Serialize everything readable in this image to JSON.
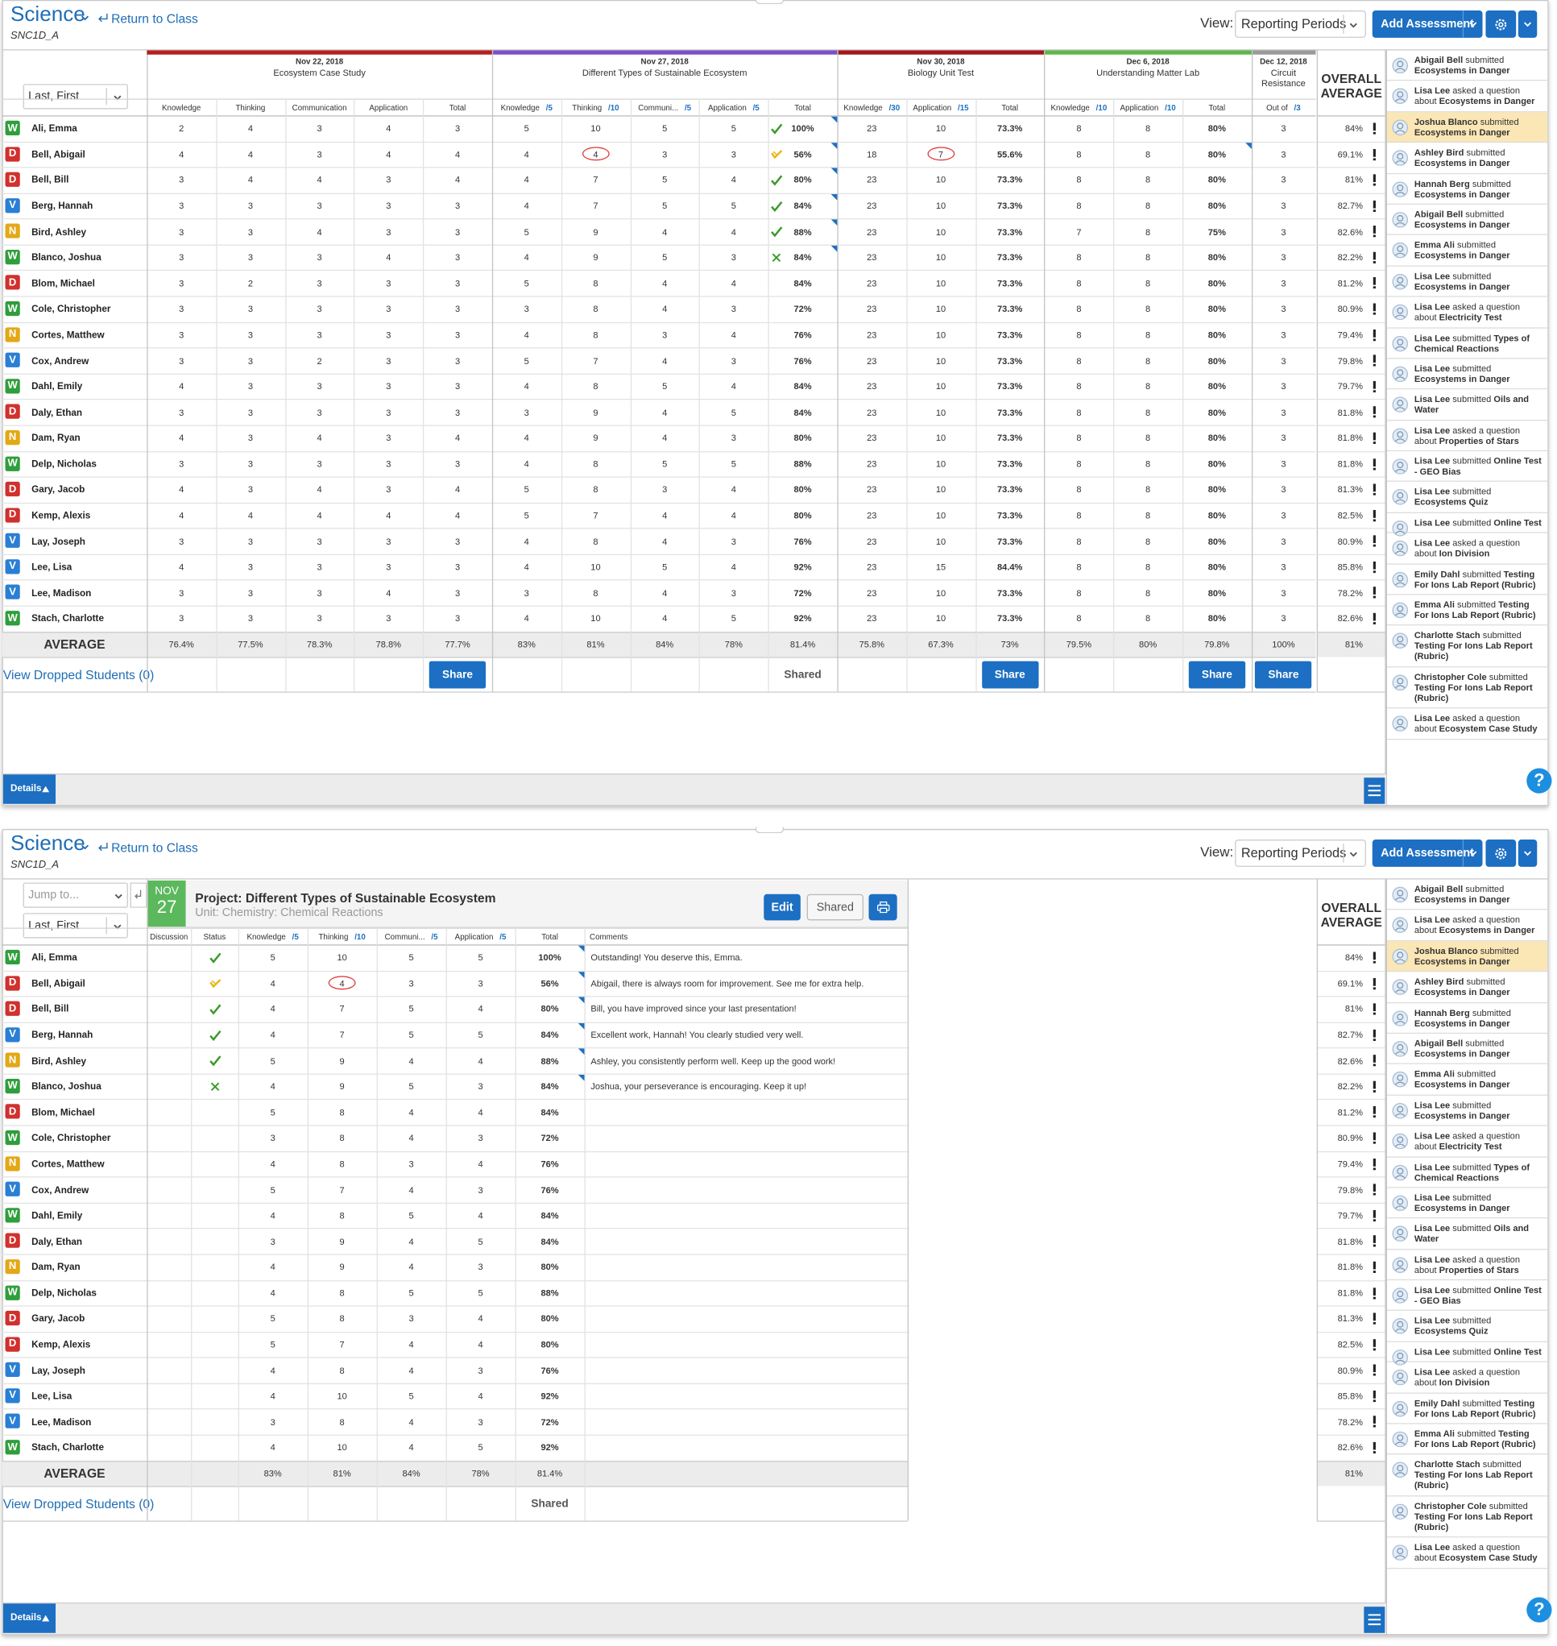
{
  "header": {
    "title": "Science",
    "return_link": "Return to Class",
    "class_code": "SNC1D_A",
    "view_label": "View:",
    "view_select": "Reporting Periods",
    "add_button": "Add Assessment"
  },
  "sort_select": "Last, First",
  "jump_select": "Jump to...",
  "status_colors": {
    "W": "#2f9e3c",
    "D": "#d0312d",
    "V": "#2a7fd4",
    "N": "#e3a817"
  },
  "students": [
    {
      "status": "W",
      "name": "Ali, Emma",
      "overall": "84%"
    },
    {
      "status": "D",
      "name": "Bell, Abigail",
      "overall": "69.1%"
    },
    {
      "status": "D",
      "name": "Bell, Bill",
      "overall": "81%"
    },
    {
      "status": "V",
      "name": "Berg, Hannah",
      "overall": "82.7%"
    },
    {
      "status": "N",
      "name": "Bird, Ashley",
      "overall": "82.6%"
    },
    {
      "status": "W",
      "name": "Blanco, Joshua",
      "overall": "82.2%"
    },
    {
      "status": "D",
      "name": "Blom, Michael",
      "overall": "81.2%"
    },
    {
      "status": "W",
      "name": "Cole, Christopher",
      "overall": "80.9%"
    },
    {
      "status": "N",
      "name": "Cortes, Matthew",
      "overall": "79.4%"
    },
    {
      "status": "V",
      "name": "Cox, Andrew",
      "overall": "79.8%"
    },
    {
      "status": "W",
      "name": "Dahl, Emily",
      "overall": "79.7%"
    },
    {
      "status": "D",
      "name": "Daly, Ethan",
      "overall": "81.8%"
    },
    {
      "status": "N",
      "name": "Dam, Ryan",
      "overall": "81.8%"
    },
    {
      "status": "W",
      "name": "Delp, Nicholas",
      "overall": "81.8%"
    },
    {
      "status": "D",
      "name": "Gary, Jacob",
      "overall": "81.3%"
    },
    {
      "status": "D",
      "name": "Kemp, Alexis",
      "overall": "82.5%"
    },
    {
      "status": "V",
      "name": "Lay, Joseph",
      "overall": "80.9%"
    },
    {
      "status": "V",
      "name": "Lee, Lisa",
      "overall": "85.8%"
    },
    {
      "status": "V",
      "name": "Lee, Madison",
      "overall": "78.2%"
    },
    {
      "status": "W",
      "name": "Stach, Charlotte",
      "overall": "82.6%"
    }
  ],
  "overall": {
    "label": "OVERALL AVERAGE",
    "class_average": "81%"
  },
  "average_label": "AVERAGE",
  "dropped_link": "View Dropped Students (0)",
  "gradebook": {
    "assessments": [
      {
        "date": "Nov 22, 2018",
        "title": "Ecosystem Case Study",
        "color": "#b51f1f",
        "columns": [
          {
            "label": "Knowledge"
          },
          {
            "label": "Thinking"
          },
          {
            "label": "Communication"
          },
          {
            "label": "Application"
          },
          {
            "label": "Total"
          }
        ],
        "share": {
          "label": "Share",
          "button": true
        }
      },
      {
        "date": "Nov 27, 2018",
        "title": "Different Types of Sustainable Ecosystem",
        "color": "#7b4fc9",
        "columns": [
          {
            "label": "Knowledge",
            "out_of": "/5"
          },
          {
            "label": "Thinking",
            "out_of": "/10"
          },
          {
            "label": "Communi...",
            "out_of": "/5"
          },
          {
            "label": "Application",
            "out_of": "/5"
          },
          {
            "label": "Total"
          }
        ],
        "share": {
          "label": "Shared",
          "button": false
        }
      },
      {
        "date": "Nov 30, 2018",
        "title": "Biology Unit Test",
        "color": "#a3161c",
        "columns": [
          {
            "label": "Knowledge",
            "out_of": "/30"
          },
          {
            "label": "Application",
            "out_of": "/15"
          },
          {
            "label": "Total"
          }
        ],
        "share": {
          "label": "Share",
          "button": true
        }
      },
      {
        "date": "Dec 6, 2018",
        "title": "Understanding Matter Lab",
        "color": "#5cb84a",
        "columns": [
          {
            "label": "Knowledge",
            "out_of": "/10"
          },
          {
            "label": "Application",
            "out_of": "/10"
          },
          {
            "label": "Total"
          }
        ],
        "share": {
          "label": "Share",
          "button": true
        }
      },
      {
        "date": "Dec 12, 2018",
        "title": "Circuit Resistance",
        "color": "#9a9a9a",
        "columns": [
          {
            "label": "Out of",
            "out_of": "/3"
          }
        ],
        "share": {
          "label": "Share",
          "button": true
        }
      }
    ],
    "grades": [
      [
        2,
        4,
        3,
        4,
        3,
        5,
        10,
        5,
        5,
        "100%",
        23,
        10,
        "73.3%",
        8,
        8,
        "80%",
        3
      ],
      [
        4,
        4,
        3,
        4,
        4,
        4,
        4,
        3,
        3,
        "56%",
        18,
        7,
        "55.6%",
        8,
        8,
        "80%",
        3
      ],
      [
        3,
        4,
        4,
        3,
        4,
        4,
        7,
        5,
        4,
        "80%",
        23,
        10,
        "73.3%",
        8,
        8,
        "80%",
        3
      ],
      [
        3,
        3,
        3,
        3,
        3,
        4,
        7,
        5,
        5,
        "84%",
        23,
        10,
        "73.3%",
        8,
        8,
        "80%",
        3
      ],
      [
        3,
        3,
        4,
        3,
        3,
        5,
        9,
        4,
        4,
        "88%",
        23,
        10,
        "73.3%",
        7,
        8,
        "75%",
        3
      ],
      [
        3,
        3,
        3,
        4,
        3,
        4,
        9,
        5,
        3,
        "84%",
        23,
        10,
        "73.3%",
        8,
        8,
        "80%",
        3
      ],
      [
        3,
        2,
        3,
        3,
        3,
        5,
        8,
        4,
        4,
        "84%",
        23,
        10,
        "73.3%",
        8,
        8,
        "80%",
        3
      ],
      [
        3,
        3,
        3,
        3,
        3,
        3,
        8,
        4,
        3,
        "72%",
        23,
        10,
        "73.3%",
        8,
        8,
        "80%",
        3
      ],
      [
        3,
        3,
        3,
        3,
        3,
        4,
        8,
        3,
        4,
        "76%",
        23,
        10,
        "73.3%",
        8,
        8,
        "80%",
        3
      ],
      [
        3,
        3,
        2,
        3,
        3,
        5,
        7,
        4,
        3,
        "76%",
        23,
        10,
        "73.3%",
        8,
        8,
        "80%",
        3
      ],
      [
        4,
        3,
        3,
        3,
        3,
        4,
        8,
        5,
        4,
        "84%",
        23,
        10,
        "73.3%",
        8,
        8,
        "80%",
        3
      ],
      [
        3,
        3,
        3,
        3,
        3,
        3,
        9,
        4,
        5,
        "84%",
        23,
        10,
        "73.3%",
        8,
        8,
        "80%",
        3
      ],
      [
        4,
        3,
        4,
        3,
        4,
        4,
        9,
        4,
        3,
        "80%",
        23,
        10,
        "73.3%",
        8,
        8,
        "80%",
        3
      ],
      [
        3,
        3,
        3,
        3,
        3,
        4,
        8,
        5,
        5,
        "88%",
        23,
        10,
        "73.3%",
        8,
        8,
        "80%",
        3
      ],
      [
        4,
        3,
        4,
        3,
        4,
        5,
        8,
        3,
        4,
        "80%",
        23,
        10,
        "73.3%",
        8,
        8,
        "80%",
        3
      ],
      [
        4,
        4,
        4,
        4,
        4,
        5,
        7,
        4,
        4,
        "80%",
        23,
        10,
        "73.3%",
        8,
        8,
        "80%",
        3
      ],
      [
        3,
        3,
        3,
        3,
        3,
        4,
        8,
        4,
        3,
        "76%",
        23,
        10,
        "73.3%",
        8,
        8,
        "80%",
        3
      ],
      [
        4,
        3,
        3,
        3,
        3,
        4,
        10,
        5,
        4,
        "92%",
        23,
        15,
        "84.4%",
        8,
        8,
        "80%",
        3
      ],
      [
        3,
        3,
        3,
        4,
        3,
        3,
        8,
        4,
        3,
        "72%",
        23,
        10,
        "73.3%",
        8,
        8,
        "80%",
        3
      ],
      [
        3,
        3,
        3,
        3,
        3,
        4,
        10,
        4,
        5,
        "92%",
        23,
        10,
        "73.3%",
        8,
        8,
        "80%",
        3
      ]
    ],
    "averages": [
      "76.4%",
      "77.5%",
      "78.3%",
      "78.8%",
      "77.7%",
      "83%",
      "81%",
      "84%",
      "78%",
      "81.4%",
      "75.8%",
      "67.3%",
      "73%",
      "79.5%",
      "80%",
      "79.8%",
      "100%"
    ],
    "flagged": [
      [
        1,
        6
      ],
      [
        1,
        11
      ]
    ],
    "comment_marks": [
      [
        0,
        9
      ],
      [
        1,
        9
      ],
      [
        2,
        9
      ],
      [
        3,
        9
      ],
      [
        4,
        9
      ],
      [
        5,
        9
      ],
      [
        1,
        15
      ]
    ]
  },
  "detail": {
    "month": "NOV",
    "day": "27",
    "title": "Project: Different Types of Sustainable Ecosystem",
    "unit": "Unit: Chemistry: Chemical Reactions",
    "edit": "Edit",
    "shared_button": "Shared",
    "columns": {
      "discussion": "Discussion",
      "status": "Status",
      "comments": "Comments"
    },
    "status_icons": [
      "check",
      "partial",
      "check",
      "check",
      "check",
      "cross"
    ],
    "comments": [
      "Outstanding! You deserve this, Emma.",
      "Abigail, there is always room for improvement. See me for extra help.",
      "Bill, you have improved since your last presentation!",
      "Excellent work, Hannah! You clearly studied very well.",
      "Ashley, you consistently perform well. Keep up the good work!",
      "Joshua, your perseverance is encouraging. Keep it up!"
    ]
  },
  "feed": {
    "highlight": 2,
    "items": [
      {
        "actor": "Abigail Bell",
        "action": "submitted",
        "subject": "Ecosystems in Danger"
      },
      {
        "actor": "Lisa Lee",
        "action": "asked a question about",
        "subject": "Ecosystems in Danger"
      },
      {
        "actor": "Joshua Blanco",
        "action": "submitted",
        "subject": "Ecosystems in Danger"
      },
      {
        "actor": "Ashley Bird",
        "action": "submitted",
        "subject": "Ecosystems in Danger"
      },
      {
        "actor": "Hannah Berg",
        "action": "submitted",
        "subject": "Ecosystems in Danger"
      },
      {
        "actor": "Abigail Bell",
        "action": "submitted",
        "subject": "Ecosystems in Danger"
      },
      {
        "actor": "Emma Ali",
        "action": "submitted",
        "subject": "Ecosystems in Danger"
      },
      {
        "actor": "Lisa Lee",
        "action": "submitted",
        "subject": "Ecosystems in Danger"
      },
      {
        "actor": "Lisa Lee",
        "action": "asked a question about",
        "subject": "Electricity Test"
      },
      {
        "actor": "Lisa Lee",
        "action": "submitted",
        "subject": "Types of Chemical Reactions"
      },
      {
        "actor": "Lisa Lee",
        "action": "submitted",
        "subject": "Ecosystems in Danger"
      },
      {
        "actor": "Lisa Lee",
        "action": "submitted",
        "subject": "Oils and Water"
      },
      {
        "actor": "Lisa Lee",
        "action": "asked a question about",
        "subject": "Properties of Stars"
      },
      {
        "actor": "Lisa Lee",
        "action": "submitted",
        "subject": "Online Test - GEO Bias"
      },
      {
        "actor": "Lisa Lee",
        "action": "submitted",
        "subject": "Ecosystems Quiz"
      },
      {
        "actor": "Lisa Lee",
        "action": "submitted",
        "subject": "Online Test"
      },
      {
        "actor": "Lisa Lee",
        "action": "asked a question about",
        "subject": "Ion Division"
      },
      {
        "actor": "Emily Dahl",
        "action": "submitted",
        "subject": "Testing For Ions Lab Report (Rubric)"
      },
      {
        "actor": "Emma Ali",
        "action": "submitted",
        "subject": "Testing For Ions Lab Report (Rubric)"
      },
      {
        "actor": "Charlotte Stach",
        "action": "submitted",
        "subject": "Testing For Ions Lab Report (Rubric)"
      },
      {
        "actor": "Christopher Cole",
        "action": "submitted",
        "subject": "Testing For Ions Lab Report (Rubric)"
      },
      {
        "actor": "Lisa Lee",
        "action": "asked a question about",
        "subject": "Ecosystem Case Study"
      }
    ]
  },
  "details_tab": "Details",
  "help": "?"
}
